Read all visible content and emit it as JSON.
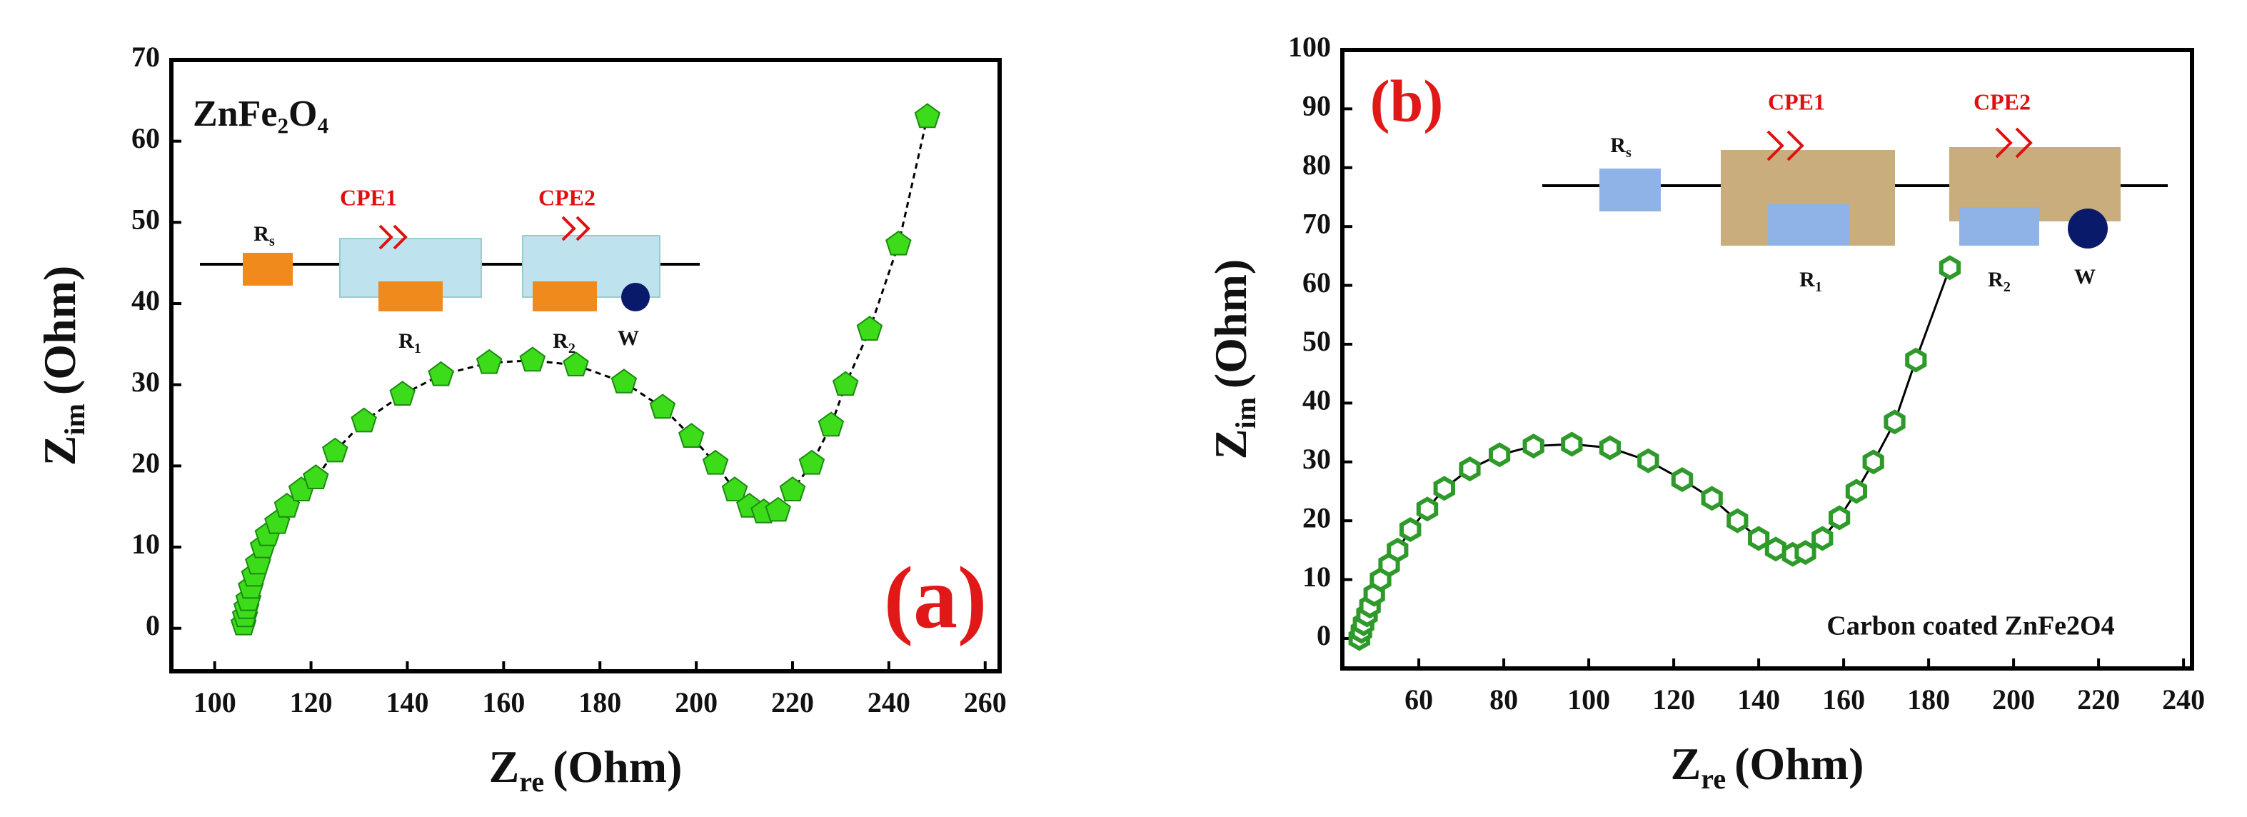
{
  "chart_data": [
    {
      "type": "scatter-line",
      "title": "ZnFe₂O₄",
      "annotation": "(a)",
      "xlabel": [
        "Z",
        "re",
        "(Ohm)"
      ],
      "ylabel": [
        "Z",
        "im",
        "(Ohm)"
      ],
      "circuit": {
        "rs": [
          "R",
          "s"
        ],
        "cpe1": "CPE1",
        "cpe2": "CPE2",
        "r1": [
          "R",
          "1"
        ],
        "r2": [
          "R",
          "2"
        ],
        "w": "W"
      },
      "x": [
        106,
        106.3,
        106.6,
        107,
        107.5,
        108.2,
        109,
        110,
        111,
        113,
        115,
        118,
        121,
        125,
        131,
        139,
        147,
        157,
        166,
        175,
        185,
        193,
        199,
        204,
        208,
        211,
        214,
        217,
        220,
        224,
        228,
        231,
        236,
        242,
        248
      ],
      "values": [
        0.5,
        1.5,
        2.5,
        3.5,
        5,
        6.5,
        8,
        10,
        11.5,
        13,
        15,
        17,
        18.5,
        21.8,
        25.5,
        28.8,
        31.2,
        32.7,
        33,
        32.4,
        30.3,
        27.2,
        23.6,
        20.3,
        17,
        15,
        14.3,
        14.5,
        17,
        20.3,
        25,
        30,
        36.8,
        47.3,
        63
      ],
      "color": "#3ddc1a",
      "xlim": [
        91,
        263
      ],
      "ylim": [
        -5.3,
        70
      ],
      "xticks": [
        100,
        120,
        140,
        160,
        180,
        200,
        220,
        240,
        260
      ],
      "yticks": [
        0,
        10,
        20,
        30,
        40,
        50,
        60,
        70
      ]
    },
    {
      "type": "scatter-line",
      "annotation": "(b)",
      "note": "Carbon coated ZnFe2O4",
      "xlabel": [
        "Z",
        "re",
        "(Ohm)"
      ],
      "ylabel": [
        "Z",
        "im",
        "(Ohm)"
      ],
      "circuit": {
        "rs": [
          "R",
          "s"
        ],
        "cpe1": "CPE1",
        "cpe2": "CPE2",
        "r1": [
          "R",
          "1"
        ],
        "r2": [
          "R",
          "2"
        ],
        "w": "W"
      },
      "x": [
        46,
        46.5,
        47,
        47.8,
        48.5,
        49.5,
        51,
        53,
        55,
        58,
        62,
        66,
        72,
        79,
        87,
        96,
        105,
        114,
        122,
        129,
        135,
        140,
        144,
        148,
        151,
        155,
        159,
        163,
        167,
        172,
        177,
        185
      ],
      "values": [
        0,
        1.2,
        2.5,
        4,
        5.5,
        7.5,
        10,
        12.5,
        15,
        18.5,
        22,
        25.5,
        28.8,
        31.2,
        32.7,
        33,
        32.4,
        30.2,
        27,
        23.8,
        20,
        17,
        15.2,
        14.3,
        14.6,
        17,
        20.5,
        25,
        30,
        36.8,
        47.3,
        63
      ],
      "color": "#2e9a2a",
      "xlim": [
        42,
        242
      ],
      "ylim": [
        -5.1,
        100
      ],
      "xticks": [
        60,
        80,
        100,
        120,
        140,
        160,
        180,
        200,
        220,
        240
      ],
      "yticks": [
        0,
        10,
        20,
        30,
        40,
        50,
        60,
        70,
        80,
        90,
        100
      ]
    }
  ]
}
